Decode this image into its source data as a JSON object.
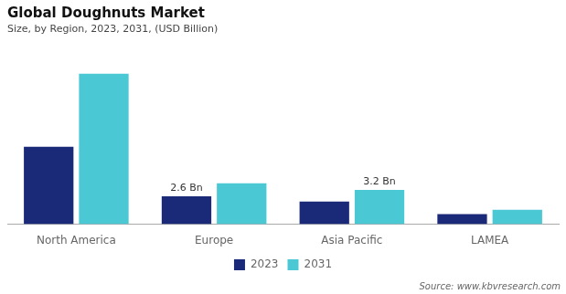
{
  "chart_data": {
    "type": "bar",
    "title": "Global Doughnuts Market",
    "subtitle": "Size, by Region, 2023, 2031, (USD Billion)",
    "categories": [
      "North America",
      "Europe",
      "Asia Pacific",
      "LAMEA"
    ],
    "series": [
      {
        "name": "2023",
        "color": "#1b2a78",
        "values": [
          7.2,
          2.6,
          2.1,
          0.95
        ],
        "value_labels": [
          null,
          "2.6 Bn",
          null,
          null
        ]
      },
      {
        "name": "2031",
        "color": "#4ac8d4",
        "values": [
          14.0,
          3.8,
          3.2,
          1.35
        ],
        "value_labels": [
          null,
          null,
          "3.2 Bn",
          null
        ]
      }
    ],
    "ylim": [
      0,
      16
    ],
    "grid": false,
    "legend": "bottom",
    "tick_labels": "x",
    "source": "Source: www.kbvresearch.com"
  }
}
